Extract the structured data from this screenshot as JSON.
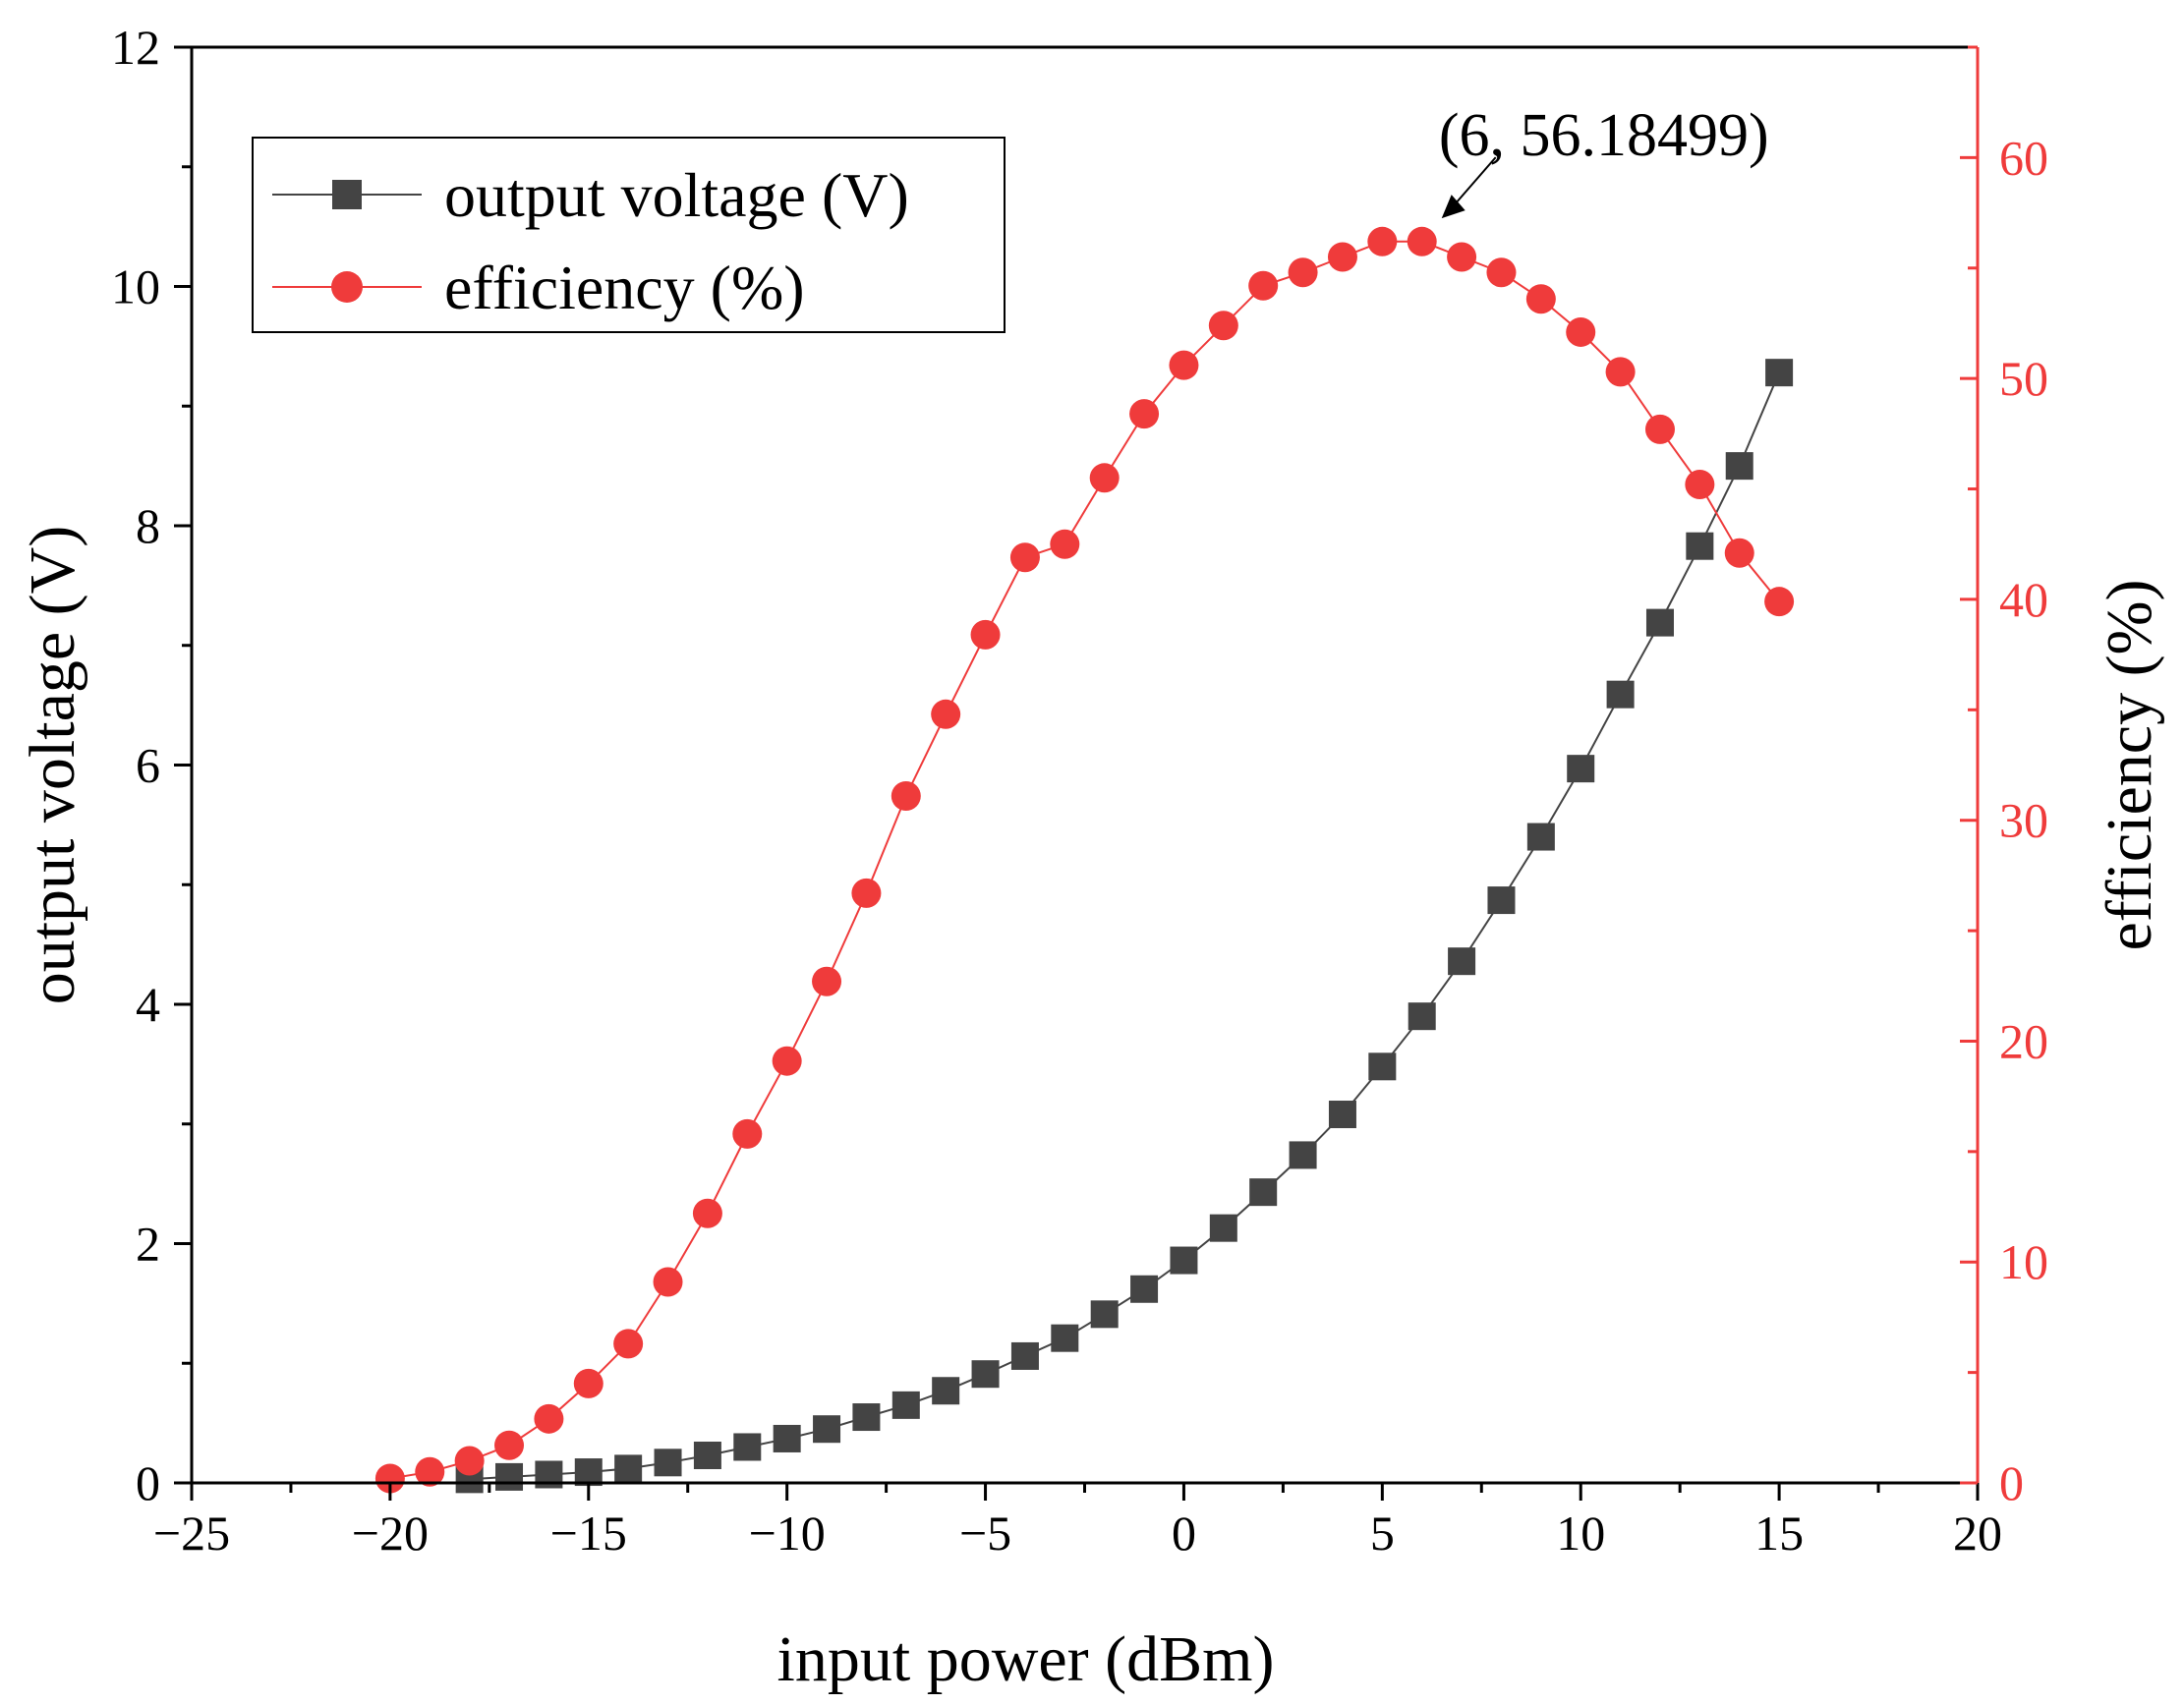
{
  "chart_data": {
    "type": "line",
    "xlabel": "input power (dBm)",
    "ylabel": "output voltage (V)",
    "y2label": "efficiency (%)",
    "xlim": [
      -25,
      20
    ],
    "ylim": [
      0,
      12
    ],
    "y2lim": [
      0,
      65
    ],
    "xticks": [
      -25,
      -20,
      -15,
      -10,
      -5,
      0,
      5,
      10,
      15,
      20
    ],
    "xtick_labels": [
      "−25",
      "−20",
      "−15",
      "−10",
      "−5",
      "0",
      "5",
      "10",
      "15",
      "20"
    ],
    "yticks": [
      0,
      2,
      4,
      6,
      8,
      10,
      12
    ],
    "ytick_labels": [
      "0",
      "2",
      "4",
      "6",
      "8",
      "10",
      "12"
    ],
    "y2ticks": [
      0,
      10,
      20,
      30,
      40,
      50,
      60
    ],
    "y2tick_labels": [
      "0",
      "10",
      "20",
      "30",
      "40",
      "50",
      "60"
    ],
    "grid": false,
    "legend_position": "top-left",
    "series": [
      {
        "name": "output voltage (V)",
        "axis": "left",
        "marker": "square",
        "color": "#444444",
        "x": [
          -18,
          -17,
          -16,
          -15,
          -14,
          -13,
          -12,
          -11,
          -10,
          -9,
          -8,
          -7,
          -6,
          -5,
          -4,
          -3,
          -2,
          -1,
          0,
          1,
          2,
          3,
          4,
          5,
          6,
          7,
          8,
          9,
          10,
          11,
          12,
          13,
          14,
          15
        ],
        "values": [
          0.03,
          0.05,
          0.07,
          0.09,
          0.12,
          0.17,
          0.23,
          0.3,
          0.37,
          0.45,
          0.55,
          0.65,
          0.77,
          0.91,
          1.06,
          1.21,
          1.41,
          1.62,
          1.86,
          2.13,
          2.43,
          2.74,
          3.08,
          3.48,
          3.9,
          4.36,
          4.87,
          5.4,
          5.97,
          6.59,
          7.19,
          7.83,
          8.5,
          9.28
        ]
      },
      {
        "name": "efficiency (%)",
        "axis": "right",
        "marker": "circle",
        "color": "#ef3b3b",
        "x": [
          -20,
          -19,
          -18,
          -17,
          -16,
          -15,
          -14,
          -13,
          -12,
          -11,
          -10,
          -9,
          -8,
          -7,
          -6,
          -5,
          -4,
          -3,
          -2,
          -1,
          0,
          1,
          2,
          3,
          4,
          5,
          6,
          7,
          8,
          9,
          10,
          11,
          12,
          13,
          14,
          15
        ],
        "values": [
          0.2,
          0.5,
          1.0,
          1.7,
          2.9,
          4.5,
          6.3,
          9.1,
          12.2,
          15.8,
          19.1,
          22.7,
          26.7,
          31.1,
          34.8,
          38.4,
          41.9,
          42.5,
          45.5,
          48.4,
          50.6,
          52.4,
          54.2,
          54.8,
          55.5,
          56.2,
          56.2,
          55.5,
          54.8,
          53.6,
          52.1,
          50.3,
          47.7,
          45.2,
          42.1,
          39.9
        ]
      }
    ],
    "annotations": [
      {
        "text": "(6, 56.18499)",
        "target_x": 6,
        "target_y": 56.18499,
        "axis": "right"
      }
    ]
  }
}
